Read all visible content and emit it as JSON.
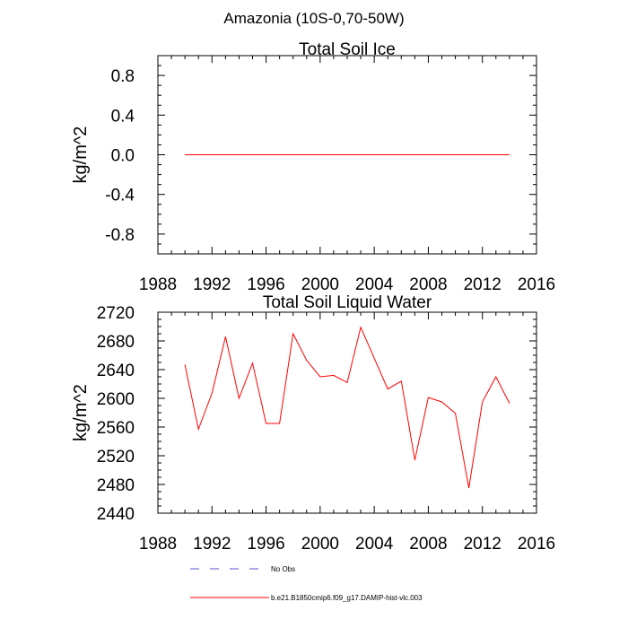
{
  "figure": {
    "suptitle": "Amazonia (10S-0,70-50W)"
  },
  "chart_data": [
    {
      "type": "line",
      "title": "Total Soil Ice",
      "xlabel": "",
      "ylabel": "kg/m^2",
      "xlim": [
        1988,
        2016
      ],
      "ylim": [
        -1.0,
        1.0
      ],
      "xticks": [
        1988,
        1992,
        1996,
        2000,
        2004,
        2008,
        2012,
        2016
      ],
      "yticks": [
        -0.8,
        -0.4,
        0.0,
        0.4,
        0.8
      ],
      "ytick_labels": [
        "-0.8",
        "-0.4",
        "0.0",
        "0.4",
        "0.8"
      ],
      "grid": false,
      "series": [
        {
          "name": "b.e21.B1850cmip6.f09_g17.DAMIP-hist-vlc.003",
          "color": "#ff0000",
          "x": [
            1990,
            1991,
            1992,
            1993,
            1994,
            1995,
            1996,
            1997,
            1998,
            1999,
            2000,
            2001,
            2002,
            2003,
            2004,
            2005,
            2006,
            2007,
            2008,
            2009,
            2010,
            2011,
            2012,
            2013,
            2014
          ],
          "y": [
            0,
            0,
            0,
            0,
            0,
            0,
            0,
            0,
            0,
            0,
            0,
            0,
            0,
            0,
            0,
            0,
            0,
            0,
            0,
            0,
            0,
            0,
            0,
            0,
            0
          ]
        }
      ]
    },
    {
      "type": "line",
      "title": "Total Soil Liquid Water",
      "xlabel": "",
      "ylabel": "kg/m^2",
      "xlim": [
        1988,
        2016
      ],
      "ylim": [
        2440,
        2720
      ],
      "xticks": [
        1988,
        1992,
        1996,
        2000,
        2004,
        2008,
        2012,
        2016
      ],
      "yticks": [
        2440,
        2480,
        2520,
        2560,
        2600,
        2640,
        2680,
        2720
      ],
      "ytick_labels": [
        "2440",
        "2480",
        "2520",
        "2560",
        "2600",
        "2640",
        "2680",
        "2720"
      ],
      "grid": false,
      "series": [
        {
          "name": "b.e21.B1850cmip6.f09_g17.DAMIP-hist-vlc.003",
          "color": "#ff0000",
          "x": [
            1990,
            1991,
            1992,
            1993,
            1994,
            1995,
            1996,
            1997,
            1998,
            1999,
            2000,
            2001,
            2002,
            2003,
            2004,
            2005,
            2006,
            2007,
            2008,
            2009,
            2010,
            2011,
            2012,
            2013,
            2014
          ],
          "y": [
            2647,
            2557,
            2607,
            2686,
            2600,
            2649,
            2565,
            2565,
            2690,
            2653,
            2630,
            2632,
            2622,
            2699,
            2656,
            2613,
            2624,
            2514,
            2601,
            2595,
            2579,
            2475,
            2595,
            2630,
            2593
          ]
        }
      ]
    }
  ],
  "legend": {
    "position": "bottom",
    "items": [
      {
        "label": "No Obs",
        "color": "#5555cc",
        "style": "dashed"
      },
      {
        "label": "b.e21.B1850cmip6.f09_g17.DAMIP-hist-vlc.003",
        "color": "#ff0000",
        "style": "solid"
      }
    ]
  }
}
